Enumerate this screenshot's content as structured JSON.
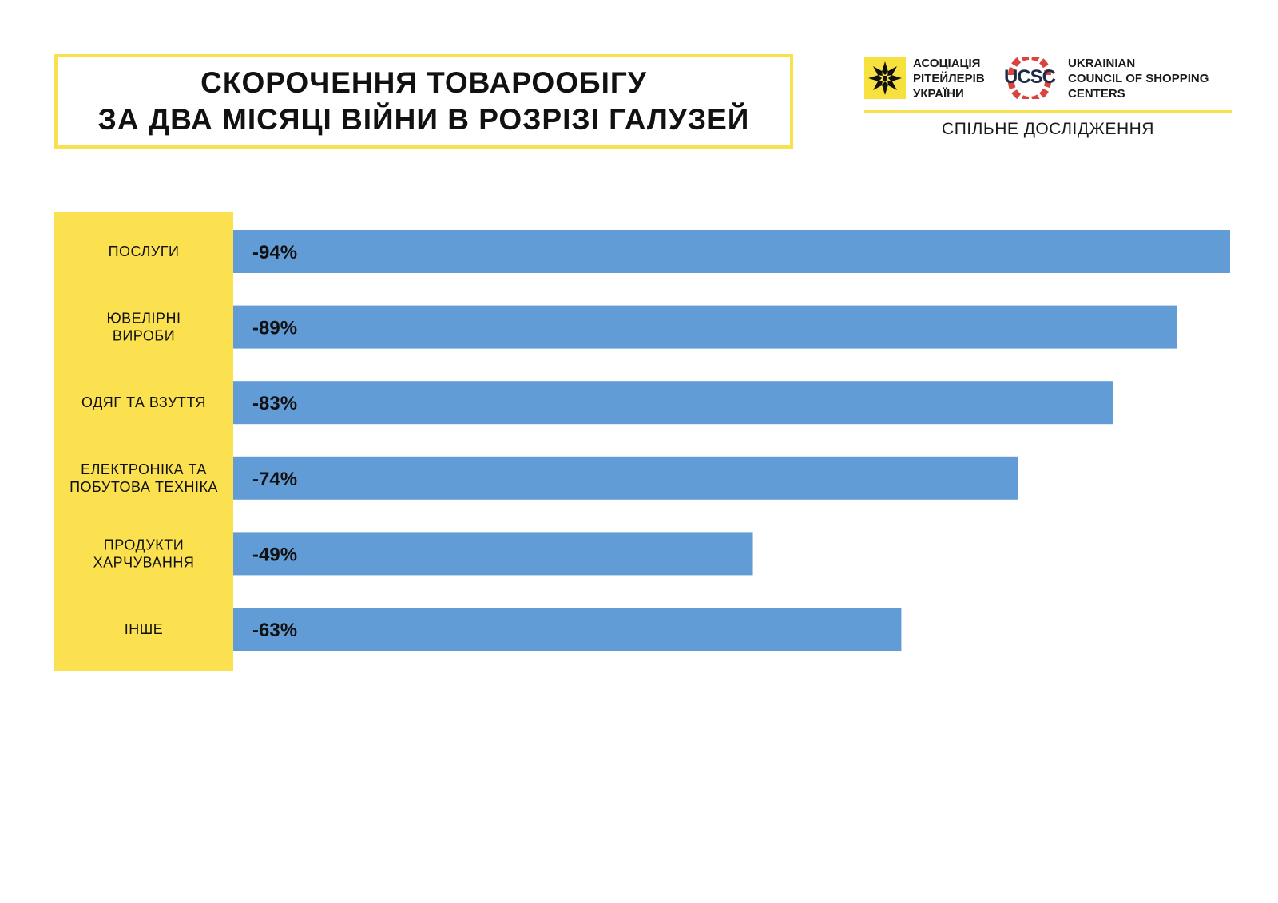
{
  "title": {
    "line1": "СКОРОЧЕННЯ ТОВАРООБІГУ",
    "line2": "ЗА ДВА МІСЯЦІ ВІЙНИ В РОЗРІЗІ ГАЛУЗЕЙ"
  },
  "partners": {
    "ara": {
      "line1": "АСОЦІАЦІЯ",
      "line2": "РІТЕЙЛЕРІВ",
      "line3": "УКРАЇНИ",
      "icon": "ornament-star-icon"
    },
    "ucsc": {
      "abbr": "UCSC",
      "line1": "UKRAINIAN",
      "line2": "COUNCIL OF SHOPPING",
      "line3": "CENTERS"
    },
    "joint_label": "СПІЛЬНЕ ДОСЛІДЖЕННЯ"
  },
  "colors": {
    "bar": "#619cd6",
    "label_panel": "#fbe04f",
    "title_border": "#f9e04f",
    "ara_logo_bg": "#f7e13e",
    "ucsc_red": "#d9443f"
  },
  "chart_data": {
    "type": "bar",
    "orientation": "horizontal",
    "categories": [
      [
        "ПОСЛУГИ"
      ],
      [
        "ЮВЕЛІРНІ",
        "ВИРОБИ"
      ],
      [
        "ОДЯГ ТА ВЗУТТЯ"
      ],
      [
        "ЕЛЕКТРОНІКА ТА",
        "ПОБУТОВА ТЕХНІКА"
      ],
      [
        "ПРОДУКТИ",
        "ХАРЧУВАННЯ"
      ],
      [
        "ІНШЕ"
      ]
    ],
    "values": [
      -94,
      -89,
      -83,
      -74,
      -49,
      -63
    ],
    "value_labels": [
      "-94%",
      "-89%",
      "-83%",
      "-74%",
      "-49%",
      "-63%"
    ],
    "unit": "%",
    "xlim": [
      0,
      94
    ],
    "grid": false,
    "legend": "none"
  }
}
